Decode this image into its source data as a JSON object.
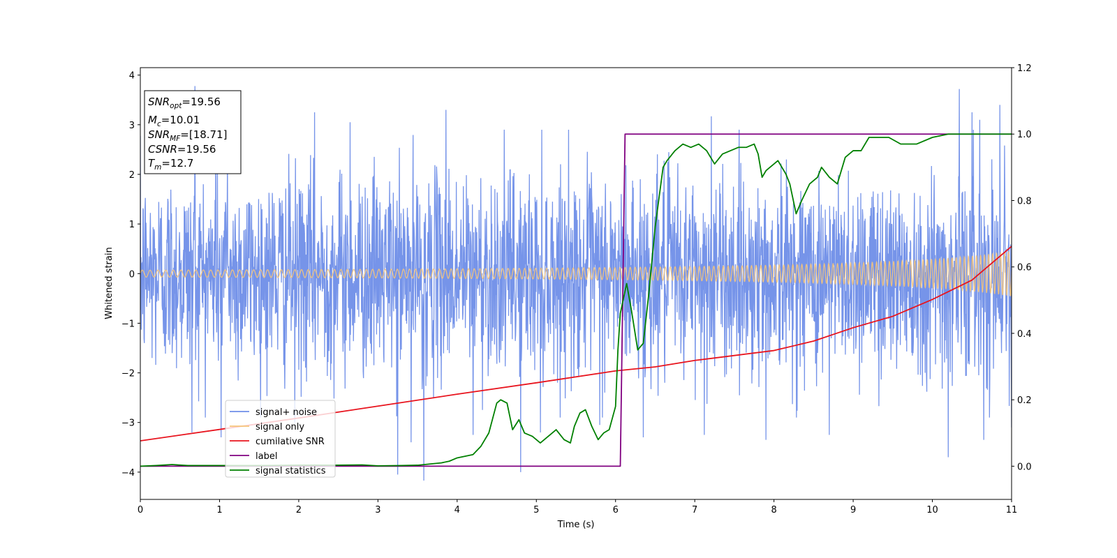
{
  "chart_data": {
    "type": "line",
    "xlabel": "Time (s)",
    "ylabel": "Whitened strain",
    "ylabel_right": "",
    "xlim": [
      0,
      11
    ],
    "ylim": [
      -4.55,
      4.15
    ],
    "ylim_right": [
      -0.1,
      1.2
    ],
    "x_ticks": [
      "0",
      "1",
      "2",
      "3",
      "4",
      "5",
      "6",
      "7",
      "8",
      "9",
      "10",
      "11"
    ],
    "y_ticks": [
      "−4",
      "−3",
      "−2",
      "−1",
      "0",
      "1",
      "2",
      "3",
      "4"
    ],
    "y_right_ticks": [
      "0.0",
      "0.2",
      "0.4",
      "0.6",
      "0.8",
      "1.0",
      "1.2"
    ],
    "grid": false,
    "legend_position": "lower-left",
    "annotation": {
      "snr_opt": {
        "base": "SNR",
        "sub": "opt",
        "value": "=19.56"
      },
      "mc": {
        "base": "M",
        "sub": "c",
        "value": "=10.01"
      },
      "snr_mf": {
        "base": "SNR",
        "sub": "MF",
        "value": "=[18.71]"
      },
      "csnr": {
        "base": "CSNR",
        "sub": "",
        "value": "=19.56"
      },
      "tm": {
        "base": "T",
        "sub": "m",
        "value": "=12.7"
      }
    },
    "series": [
      {
        "name": "signal+ noise",
        "color": "#6f8ee8",
        "axis": "left",
        "kind": "noise",
        "sigma": 1.0,
        "extremes": [
          [
            0.69,
            3.78
          ],
          [
            0.95,
            3.1
          ],
          [
            1.1,
            2.3
          ],
          [
            2.2,
            3.25
          ],
          [
            2.65,
            3.05
          ],
          [
            3.86,
            3.3
          ],
          [
            7.21,
            3.17
          ],
          [
            10.34,
            3.72
          ],
          [
            10.5,
            3.25
          ],
          [
            10.6,
            3.1
          ],
          [
            10.85,
            3.4
          ],
          [
            0.65,
            -3.2
          ],
          [
            1.02,
            -3.3
          ],
          [
            3.25,
            -4.05
          ],
          [
            3.42,
            -3.4
          ],
          [
            3.58,
            -4.17
          ],
          [
            4.8,
            -4.0
          ],
          [
            4.2,
            -3.25
          ],
          [
            5.8,
            -3.05
          ],
          [
            6.35,
            -3.3
          ],
          [
            7.12,
            -3.25
          ],
          [
            7.9,
            -3.35
          ],
          [
            8.7,
            -3.25
          ],
          [
            10.2,
            -3.7
          ],
          [
            10.65,
            -3.35
          ],
          [
            11.0,
            -3.1
          ],
          [
            1.95,
            -3.0
          ],
          [
            5.05,
            -3.2
          ]
        ]
      },
      {
        "name": "signal only",
        "color": "#f6c47a",
        "axis": "left",
        "kind": "chirp",
        "amp_start": 0.07,
        "amp_end": 0.46,
        "cycles_start": 10,
        "cycles_end": 20,
        "t_coalescence": 12.7
      },
      {
        "name": "cumilative SNR",
        "color": "#e8141e",
        "axis": "left",
        "x": [
          0,
          1,
          2,
          3,
          4,
          5,
          6,
          6.5,
          7,
          7.5,
          8,
          8.5,
          9,
          9.5,
          10,
          10.5,
          11
        ],
        "y": [
          -3.37,
          -3.14,
          -2.91,
          -2.67,
          -2.43,
          -2.2,
          -1.96,
          -1.88,
          -1.75,
          -1.65,
          -1.55,
          -1.36,
          -1.09,
          -0.86,
          -0.52,
          -0.13,
          0.55
        ]
      },
      {
        "name": "label",
        "color": "#800080",
        "axis": "right",
        "x": [
          0,
          6.06,
          6.12,
          11
        ],
        "y": [
          0,
          0,
          1,
          1
        ]
      },
      {
        "name": "signal statistics",
        "color": "#008000",
        "axis": "right",
        "x": [
          0,
          0.2,
          0.4,
          0.6,
          1.0,
          1.5,
          2.0,
          2.5,
          2.8,
          3.0,
          3.3,
          3.5,
          3.8,
          3.9,
          4.0,
          4.1,
          4.2,
          4.3,
          4.4,
          4.5,
          4.55,
          4.63,
          4.7,
          4.78,
          4.85,
          4.95,
          5.05,
          5.15,
          5.25,
          5.35,
          5.43,
          5.48,
          5.55,
          5.62,
          5.7,
          5.78,
          5.85,
          5.92,
          6.0,
          6.03,
          6.06,
          6.14,
          6.2,
          6.28,
          6.35,
          6.42,
          6.5,
          6.6,
          6.65,
          6.75,
          6.85,
          6.95,
          7.05,
          7.15,
          7.25,
          7.35,
          7.45,
          7.55,
          7.65,
          7.75,
          7.8,
          7.85,
          7.9,
          7.95,
          8.05,
          8.15,
          8.2,
          8.28,
          8.35,
          8.45,
          8.55,
          8.6,
          8.7,
          8.8,
          8.9,
          9.0,
          9.1,
          9.2,
          9.3,
          9.45,
          9.6,
          9.8,
          10.0,
          10.2,
          10.4,
          10.6,
          10.8,
          11.0
        ],
        "y": [
          0,
          0.002,
          0.005,
          0.002,
          0.002,
          0.002,
          0.003,
          0.003,
          0.004,
          0.001,
          0.002,
          0.003,
          0.01,
          0.015,
          0.025,
          0.03,
          0.035,
          0.06,
          0.1,
          0.19,
          0.2,
          0.19,
          0.11,
          0.14,
          0.1,
          0.09,
          0.07,
          0.09,
          0.11,
          0.08,
          0.07,
          0.12,
          0.16,
          0.17,
          0.12,
          0.08,
          0.1,
          0.11,
          0.18,
          0.35,
          0.46,
          0.55,
          0.47,
          0.35,
          0.37,
          0.52,
          0.72,
          0.9,
          0.92,
          0.95,
          0.97,
          0.96,
          0.97,
          0.95,
          0.91,
          0.94,
          0.95,
          0.96,
          0.96,
          0.97,
          0.94,
          0.87,
          0.89,
          0.9,
          0.92,
          0.88,
          0.85,
          0.76,
          0.8,
          0.85,
          0.87,
          0.9,
          0.87,
          0.85,
          0.93,
          0.95,
          0.95,
          0.99,
          0.99,
          0.99,
          0.97,
          0.97,
          0.99,
          1.0,
          1.0,
          1.0,
          1.0,
          1.0
        ]
      }
    ]
  }
}
